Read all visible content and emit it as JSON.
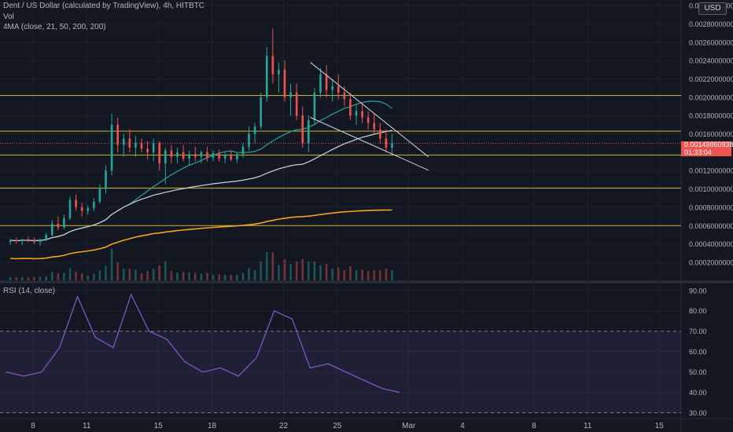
{
  "header": {
    "title": "Dent / US Dollar (calculated by TradingView), 4h, HITBTC",
    "vol_label": "Vol",
    "ma_label": "4MA (close, 21, 50, 200, 200)",
    "currency_button": "USD"
  },
  "rsi_panel": {
    "label": "RSI (14, close)"
  },
  "last_price": {
    "value": "0.00149860938",
    "countdown": "01:33:04"
  },
  "colors": {
    "background": "#131722",
    "grid": "#1e222d",
    "up": "#26a69a",
    "down": "#ef5350",
    "ma21": "#26a69a",
    "ma50": "#d1d4dc",
    "ma200": "#f7a21b",
    "hline": "#c8b43a",
    "rsi": "#7e57c2",
    "rsi_band": "#7e57c2"
  },
  "chart_data": [
    {
      "type": "candlestick",
      "title": "Dent / US Dollar (calculated by TradingView), 4h, HITBTC",
      "x_tick_labels": [
        "8",
        "11",
        "15",
        "18",
        "22",
        "25",
        "Mar",
        "4",
        "8",
        "11",
        "15"
      ],
      "y_tick_labels": [
        "0.00020000000",
        "0.00040000000",
        "0.00060000000",
        "0.00080000000",
        "0.00100000000",
        "0.00120000000",
        "0.00160000000",
        "0.00180000000",
        "0.00200000000",
        "0.00220000000",
        "0.00240000000",
        "0.00260000000",
        "0.00280000000",
        "0.00300000000"
      ],
      "ylim": [
        0,
        0.003
      ],
      "horizontal_levels": [
        0.0006,
        0.00101,
        0.00137,
        0.00163,
        0.00202
      ],
      "trendlines": [
        {
          "name": "resistance",
          "from": [
            "Feb 23 12:00",
            0.00238
          ],
          "to": [
            "Mar 01",
            0.00135
          ]
        },
        {
          "name": "support",
          "from": [
            "Feb 23 12:00",
            0.00178
          ],
          "to": [
            "Mar 01",
            0.00123
          ]
        }
      ],
      "last_price": 0.00149860938,
      "moving_averages": [
        {
          "name": "MA 21",
          "length": 21
        },
        {
          "name": "MA 50",
          "length": 50
        },
        {
          "name": "MA 200",
          "length": 200
        },
        {
          "name": "MA 200",
          "length": 200
        }
      ],
      "candles": [
        {
          "t": "Feb 06 16:00",
          "o": 0.000423,
          "h": 0.00046,
          "l": 0.00039,
          "c": 0.00044
        },
        {
          "t": "Feb 07 00:00",
          "o": 0.00044,
          "h": 0.00047,
          "l": 0.0004,
          "c": 0.00043
        },
        {
          "t": "Feb 07 08:00",
          "o": 0.00043,
          "h": 0.00046,
          "l": 0.00039,
          "c": 0.00045
        },
        {
          "t": "Feb 07 16:00",
          "o": 0.00045,
          "h": 0.00048,
          "l": 0.00042,
          "c": 0.00044
        },
        {
          "t": "Feb 08 00:00",
          "o": 0.00044,
          "h": 0.00047,
          "l": 0.0004,
          "c": 0.00042
        },
        {
          "t": "Feb 08 08:00",
          "o": 0.00042,
          "h": 0.00046,
          "l": 0.00038,
          "c": 0.00045
        },
        {
          "t": "Feb 08 16:00",
          "o": 0.00045,
          "h": 0.00052,
          "l": 0.00043,
          "c": 0.0005
        },
        {
          "t": "Feb 09 00:00",
          "o": 0.0005,
          "h": 0.00066,
          "l": 0.00048,
          "c": 0.00062
        },
        {
          "t": "Feb 09 08:00",
          "o": 0.00062,
          "h": 0.0007,
          "l": 0.00055,
          "c": 0.00058
        },
        {
          "t": "Feb 09 16:00",
          "o": 0.00058,
          "h": 0.00072,
          "l": 0.00056,
          "c": 0.00068
        },
        {
          "t": "Feb 10 00:00",
          "o": 0.00068,
          "h": 0.00092,
          "l": 0.00066,
          "c": 0.00088
        },
        {
          "t": "Feb 10 08:00",
          "o": 0.00088,
          "h": 0.00094,
          "l": 0.00076,
          "c": 0.0008
        },
        {
          "t": "Feb 10 16:00",
          "o": 0.0008,
          "h": 0.00085,
          "l": 0.0007,
          "c": 0.00076
        },
        {
          "t": "Feb 11 00:00",
          "o": 0.00076,
          "h": 0.00082,
          "l": 0.00072,
          "c": 0.00079
        },
        {
          "t": "Feb 11 08:00",
          "o": 0.00079,
          "h": 0.0009,
          "l": 0.00076,
          "c": 0.00086
        },
        {
          "t": "Feb 11 16:00",
          "o": 0.00086,
          "h": 0.00105,
          "l": 0.00084,
          "c": 0.001
        },
        {
          "t": "Feb 12 00:00",
          "o": 0.001,
          "h": 0.00126,
          "l": 0.00095,
          "c": 0.0012
        },
        {
          "t": "Feb 12 08:00",
          "o": 0.0012,
          "h": 0.00182,
          "l": 0.00115,
          "c": 0.0017
        },
        {
          "t": "Feb 12 16:00",
          "o": 0.0017,
          "h": 0.00178,
          "l": 0.0014,
          "c": 0.00148
        },
        {
          "t": "Feb 13 00:00",
          "o": 0.00148,
          "h": 0.0016,
          "l": 0.00135,
          "c": 0.00155
        },
        {
          "t": "Feb 13 08:00",
          "o": 0.00155,
          "h": 0.00165,
          "l": 0.0014,
          "c": 0.00145
        },
        {
          "t": "Feb 13 16:00",
          "o": 0.00145,
          "h": 0.00158,
          "l": 0.00135,
          "c": 0.0015
        },
        {
          "t": "Feb 14 00:00",
          "o": 0.0015,
          "h": 0.00155,
          "l": 0.0014,
          "c": 0.00144
        },
        {
          "t": "Feb 14 08:00",
          "o": 0.00144,
          "h": 0.00152,
          "l": 0.00132,
          "c": 0.0014
        },
        {
          "t": "Feb 14 16:00",
          "o": 0.0014,
          "h": 0.00155,
          "l": 0.0013,
          "c": 0.0015
        },
        {
          "t": "Feb 15 00:00",
          "o": 0.0015,
          "h": 0.00152,
          "l": 0.0012,
          "c": 0.00128
        },
        {
          "t": "Feb 15 08:00",
          "o": 0.00128,
          "h": 0.00145,
          "l": 0.00105,
          "c": 0.00142
        },
        {
          "t": "Feb 15 16:00",
          "o": 0.00142,
          "h": 0.00148,
          "l": 0.00128,
          "c": 0.00135
        },
        {
          "t": "Feb 16 00:00",
          "o": 0.00135,
          "h": 0.00145,
          "l": 0.00128,
          "c": 0.0014
        },
        {
          "t": "Feb 16 08:00",
          "o": 0.0014,
          "h": 0.00148,
          "l": 0.0013,
          "c": 0.00133
        },
        {
          "t": "Feb 16 16:00",
          "o": 0.00133,
          "h": 0.00142,
          "l": 0.00125,
          "c": 0.00138
        },
        {
          "t": "Feb 17 00:00",
          "o": 0.00138,
          "h": 0.00146,
          "l": 0.0013,
          "c": 0.00135
        },
        {
          "t": "Feb 17 08:00",
          "o": 0.00135,
          "h": 0.00142,
          "l": 0.00128,
          "c": 0.0014
        },
        {
          "t": "Feb 17 16:00",
          "o": 0.0014,
          "h": 0.00146,
          "l": 0.0013,
          "c": 0.00134
        },
        {
          "t": "Feb 18 00:00",
          "o": 0.00134,
          "h": 0.00142,
          "l": 0.0013,
          "c": 0.00139
        },
        {
          "t": "Feb 18 08:00",
          "o": 0.00139,
          "h": 0.00143,
          "l": 0.0013,
          "c": 0.00133
        },
        {
          "t": "Feb 18 16:00",
          "o": 0.00133,
          "h": 0.0014,
          "l": 0.00128,
          "c": 0.00137
        },
        {
          "t": "Feb 19 00:00",
          "o": 0.00137,
          "h": 0.00142,
          "l": 0.0013,
          "c": 0.00132
        },
        {
          "t": "Feb 19 08:00",
          "o": 0.00132,
          "h": 0.0014,
          "l": 0.00128,
          "c": 0.00138
        },
        {
          "t": "Feb 19 16:00",
          "o": 0.00138,
          "h": 0.0015,
          "l": 0.00134,
          "c": 0.00146
        },
        {
          "t": "Feb 20 00:00",
          "o": 0.00146,
          "h": 0.00168,
          "l": 0.00142,
          "c": 0.0016
        },
        {
          "t": "Feb 20 08:00",
          "o": 0.0016,
          "h": 0.00172,
          "l": 0.0015,
          "c": 0.00168
        },
        {
          "t": "Feb 20 16:00",
          "o": 0.00168,
          "h": 0.00205,
          "l": 0.00165,
          "c": 0.002
        },
        {
          "t": "Feb 21 00:00",
          "o": 0.002,
          "h": 0.00255,
          "l": 0.00195,
          "c": 0.00245
        },
        {
          "t": "Feb 21 08:00",
          "o": 0.00245,
          "h": 0.00275,
          "l": 0.00215,
          "c": 0.00225
        },
        {
          "t": "Feb 21 16:00",
          "o": 0.00225,
          "h": 0.00238,
          "l": 0.00205,
          "c": 0.0023
        },
        {
          "t": "Feb 22 00:00",
          "o": 0.0023,
          "h": 0.0024,
          "l": 0.00195,
          "c": 0.002
        },
        {
          "t": "Feb 22 08:00",
          "o": 0.002,
          "h": 0.00215,
          "l": 0.0018,
          "c": 0.00205
        },
        {
          "t": "Feb 22 16:00",
          "o": 0.00205,
          "h": 0.00215,
          "l": 0.00175,
          "c": 0.0018
        },
        {
          "t": "Feb 23 00:00",
          "o": 0.0018,
          "h": 0.0019,
          "l": 0.00145,
          "c": 0.0015
        },
        {
          "t": "Feb 23 08:00",
          "o": 0.0015,
          "h": 0.0018,
          "l": 0.0014,
          "c": 0.00175
        },
        {
          "t": "Feb 23 16:00",
          "o": 0.00175,
          "h": 0.0021,
          "l": 0.0017,
          "c": 0.00205
        },
        {
          "t": "Feb 24 00:00",
          "o": 0.00205,
          "h": 0.00232,
          "l": 0.002,
          "c": 0.00225
        },
        {
          "t": "Feb 24 08:00",
          "o": 0.00225,
          "h": 0.00235,
          "l": 0.002,
          "c": 0.00208
        },
        {
          "t": "Feb 24 16:00",
          "o": 0.00208,
          "h": 0.0022,
          "l": 0.00195,
          "c": 0.00212
        },
        {
          "t": "Feb 25 00:00",
          "o": 0.00212,
          "h": 0.00225,
          "l": 0.00198,
          "c": 0.00205
        },
        {
          "t": "Feb 25 08:00",
          "o": 0.00205,
          "h": 0.00212,
          "l": 0.0019,
          "c": 0.00198
        },
        {
          "t": "Feb 25 16:00",
          "o": 0.00198,
          "h": 0.00205,
          "l": 0.00175,
          "c": 0.0018
        },
        {
          "t": "Feb 26 00:00",
          "o": 0.0018,
          "h": 0.00192,
          "l": 0.0017,
          "c": 0.00185
        },
        {
          "t": "Feb 26 08:00",
          "o": 0.00185,
          "h": 0.00195,
          "l": 0.00172,
          "c": 0.00178
        },
        {
          "t": "Feb 26 16:00",
          "o": 0.00178,
          "h": 0.00185,
          "l": 0.00165,
          "c": 0.00172
        },
        {
          "t": "Feb 27 00:00",
          "o": 0.00172,
          "h": 0.00182,
          "l": 0.0016,
          "c": 0.00165
        },
        {
          "t": "Feb 27 08:00",
          "o": 0.00165,
          "h": 0.00172,
          "l": 0.0015,
          "c": 0.00155
        },
        {
          "t": "Feb 27 16:00",
          "o": 0.00155,
          "h": 0.00165,
          "l": 0.0014,
          "c": 0.00145
        },
        {
          "t": "Feb 28 00:00",
          "o": 0.00145,
          "h": 0.0016,
          "l": 0.00138,
          "c": 0.0015
        }
      ]
    },
    {
      "type": "line",
      "title": "RSI (14, close)",
      "y_tick_labels": [
        "30.00",
        "40.00",
        "50.00",
        "60.00",
        "70.00",
        "80.00",
        "90.00"
      ],
      "ylim": [
        27.5,
        93
      ],
      "bands": [
        30,
        70
      ],
      "x": [
        "Feb 06",
        "Feb 07",
        "Feb 08",
        "Feb 09",
        "Feb 10",
        "Feb 11",
        "Feb 12",
        "Feb 13",
        "Feb 14",
        "Feb 15",
        "Feb 16",
        "Feb 17",
        "Feb 18",
        "Feb 19",
        "Feb 20",
        "Feb 21",
        "Feb 22",
        "Feb 23",
        "Feb 24",
        "Feb 25",
        "Feb 26",
        "Feb 27",
        "Feb 28"
      ],
      "values": [
        50,
        48,
        50,
        62,
        87,
        67,
        62,
        88,
        70,
        66,
        55,
        50,
        52,
        48,
        57,
        80,
        76,
        52,
        54,
        50,
        46,
        42,
        40
      ]
    }
  ]
}
